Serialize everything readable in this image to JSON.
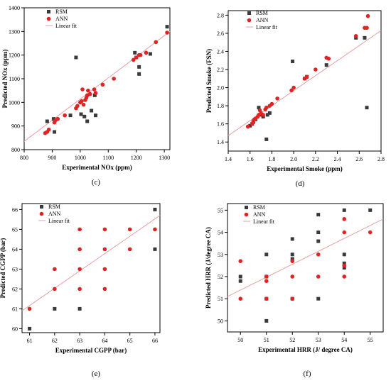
{
  "figure": {
    "panels": [
      "(c)",
      "(d)",
      "(e)",
      "(f)"
    ]
  },
  "colors": {
    "rsm": "#3a3a3a",
    "ann": "#e02424",
    "fit": "#e8a0a0",
    "axis": "#000000"
  },
  "chart_data": [
    {
      "type": "scatter",
      "panel_label": "(c)",
      "xlabel": "Experimental NOx (ppm)",
      "ylabel": "Predicted NOx (ppm)",
      "xlim": [
        800,
        1320
      ],
      "ylim": [
        800,
        1400
      ],
      "xticks": [
        800,
        900,
        1000,
        1100,
        1200,
        1300
      ],
      "yticks": [
        800,
        900,
        1000,
        1100,
        1200,
        1300,
        1400
      ],
      "legend": [
        "RSM",
        "ANN",
        "Linear fit"
      ],
      "legend_position": "top-left",
      "fit_line": [
        [
          800,
          835
        ],
        [
          1320,
          1300
        ]
      ],
      "series": [
        {
          "name": "RSM",
          "marker": "square",
          "points": [
            [
              882,
              920
            ],
            [
              905,
              930
            ],
            [
              908,
              875
            ],
            [
              965,
              945
            ],
            [
              985,
              1190
            ],
            [
              1003,
              950
            ],
            [
              1015,
              940
            ],
            [
              1025,
              920
            ],
            [
              1040,
              965
            ],
            [
              1052,
              1030
            ],
            [
              1055,
              945
            ],
            [
              1195,
              1210
            ],
            [
              1200,
              1190
            ],
            [
              1210,
              1150
            ],
            [
              1210,
              1120
            ],
            [
              1250,
              1205
            ],
            [
              1310,
              1320
            ]
          ]
        },
        {
          "name": "ANN",
          "marker": "circle",
          "points": [
            [
              875,
              870
            ],
            [
              882,
              875
            ],
            [
              888,
              885
            ],
            [
              908,
              915
            ],
            [
              912,
              925
            ],
            [
              920,
              930
            ],
            [
              945,
              945
            ],
            [
              985,
              975
            ],
            [
              990,
              985
            ],
            [
              1000,
              1000
            ],
            [
              1005,
              1005
            ],
            [
              1008,
              1055
            ],
            [
              1012,
              990
            ],
            [
              1018,
              1010
            ],
            [
              1022,
              1020
            ],
            [
              1025,
              1030
            ],
            [
              1028,
              1050
            ],
            [
              1035,
              1035
            ],
            [
              1050,
              1055
            ],
            [
              1055,
              1040
            ],
            [
              1080,
              1075
            ],
            [
              1120,
              1100
            ],
            [
              1190,
              1180
            ],
            [
              1200,
              1190
            ],
            [
              1210,
              1200
            ],
            [
              1215,
              1200
            ],
            [
              1235,
              1210
            ],
            [
              1270,
              1255
            ],
            [
              1310,
              1295
            ]
          ]
        }
      ]
    },
    {
      "type": "scatter",
      "panel_label": "(d)",
      "xlabel": "Experimental Smoke (ppm)",
      "ylabel": "Predicted Smoke (FSN)",
      "xlim": [
        1.4,
        2.8
      ],
      "ylim": [
        1.3,
        2.85
      ],
      "xticks": [
        1.4,
        1.6,
        1.8,
        2.0,
        2.2,
        2.4,
        2.6,
        2.8
      ],
      "yticks": [
        1.4,
        1.6,
        1.8,
        2.0,
        2.2,
        2.4,
        2.6,
        2.8
      ],
      "legend": [
        "RSM",
        "ANN",
        "Linear fit"
      ],
      "legend_position": "top-left",
      "fit_line": [
        [
          1.4,
          1.47
        ],
        [
          2.8,
          2.63
        ]
      ],
      "series": [
        {
          "name": "RSM",
          "marker": "square",
          "points": [
            [
              1.6,
              1.58
            ],
            [
              1.62,
              1.6
            ],
            [
              1.63,
              1.62
            ],
            [
              1.65,
              1.65
            ],
            [
              1.68,
              1.78
            ],
            [
              1.7,
              1.7
            ],
            [
              1.72,
              1.68
            ],
            [
              1.75,
              1.43
            ],
            [
              1.76,
              1.7
            ],
            [
              1.78,
              1.72
            ],
            [
              1.99,
              2.29
            ],
            [
              2.1,
              2.1
            ],
            [
              2.12,
              2.12
            ],
            [
              2.3,
              2.25
            ],
            [
              2.57,
              2.55
            ],
            [
              2.65,
              2.55
            ],
            [
              2.67,
              1.78
            ]
          ]
        },
        {
          "name": "ANN",
          "marker": "circle",
          "points": [
            [
              1.58,
              1.57
            ],
            [
              1.62,
              1.6
            ],
            [
              1.63,
              1.63
            ],
            [
              1.64,
              1.65
            ],
            [
              1.65,
              1.66
            ],
            [
              1.67,
              1.68
            ],
            [
              1.68,
              1.7
            ],
            [
              1.69,
              1.75
            ],
            [
              1.7,
              1.72
            ],
            [
              1.72,
              1.7
            ],
            [
              1.74,
              1.76
            ],
            [
              1.75,
              1.78
            ],
            [
              1.78,
              1.8
            ],
            [
              1.8,
              1.82
            ],
            [
              1.85,
              1.88
            ],
            [
              1.98,
              1.97
            ],
            [
              2.0,
              2.0
            ],
            [
              2.1,
              2.1
            ],
            [
              2.12,
              2.12
            ],
            [
              2.2,
              2.2
            ],
            [
              2.3,
              2.33
            ],
            [
              2.32,
              2.32
            ],
            [
              2.57,
              2.57
            ],
            [
              2.65,
              2.66
            ],
            [
              2.67,
              2.66
            ],
            [
              2.68,
              2.79
            ]
          ]
        }
      ]
    },
    {
      "type": "scatter",
      "panel_label": "(e)",
      "xlabel": "Experimental CGPP (bar)",
      "ylabel": "Predicted CGPP (bar)",
      "xlim": [
        60.7,
        66.2
      ],
      "ylim": [
        59.8,
        66.3
      ],
      "xticks": [
        61,
        62,
        63,
        64,
        65,
        66
      ],
      "yticks": [
        60,
        61,
        62,
        63,
        64,
        65,
        66
      ],
      "legend": [
        "RSM",
        "ANN",
        "Linear fit"
      ],
      "legend_position": "top-left",
      "fit_line": [
        [
          60.7,
          60.9
        ],
        [
          66.2,
          65.7
        ]
      ],
      "series": [
        {
          "name": "RSM",
          "marker": "square",
          "points": [
            [
              61,
              60
            ],
            [
              62,
              61
            ],
            [
              63,
              61
            ],
            [
              66,
              64
            ],
            [
              66,
              66
            ]
          ]
        },
        {
          "name": "ANN",
          "marker": "circle",
          "points": [
            [
              61,
              61
            ],
            [
              62,
              62
            ],
            [
              62,
              63
            ],
            [
              63,
              62
            ],
            [
              63,
              63
            ],
            [
              63,
              64
            ],
            [
              63,
              65
            ],
            [
              64,
              62
            ],
            [
              64,
              63
            ],
            [
              64,
              64
            ],
            [
              64,
              65
            ],
            [
              65,
              64
            ],
            [
              65,
              65
            ],
            [
              66,
              65
            ]
          ]
        }
      ]
    },
    {
      "type": "scatter",
      "panel_label": "(f)",
      "xlabel": "Experimental HRR (J/ degree CA)",
      "ylabel": "Predicted HRR (J/degree CA)",
      "xlim": [
        49.5,
        55.5
      ],
      "ylim": [
        49.5,
        55.3
      ],
      "xticks": [
        50,
        51,
        52,
        53,
        54,
        55
      ],
      "yticks": [
        50,
        51,
        52,
        53,
        54,
        55
      ],
      "legend": [
        "RSM",
        "ANN",
        "Linear fit"
      ],
      "legend_position": "top-left",
      "fit_line": [
        [
          49.5,
          51.1
        ],
        [
          55.5,
          54.6
        ]
      ],
      "series": [
        {
          "name": "RSM",
          "marker": "square",
          "points": [
            [
              50,
              51.8
            ],
            [
              50,
              52
            ],
            [
              51,
              50
            ],
            [
              51,
              51
            ],
            [
              51,
              52
            ],
            [
              51,
              53
            ],
            [
              52,
              51
            ],
            [
              52,
              52.8
            ],
            [
              52,
              53
            ],
            [
              52,
              53.7
            ],
            [
              53,
              51
            ],
            [
              53,
              53.6
            ],
            [
              53,
              54
            ],
            [
              53,
              54.8
            ],
            [
              54,
              52.4
            ],
            [
              54,
              52.6
            ],
            [
              54,
              53
            ],
            [
              54,
              55
            ],
            [
              55,
              55
            ]
          ]
        },
        {
          "name": "ANN",
          "marker": "circle",
          "points": [
            [
              50,
              51
            ],
            [
              50,
              52.7
            ],
            [
              51,
              51
            ],
            [
              51,
              51.8
            ],
            [
              51,
              52
            ],
            [
              52,
              51
            ],
            [
              52,
              52
            ],
            [
              52,
              52.7
            ],
            [
              53,
              52
            ],
            [
              53,
              53
            ],
            [
              54,
              52
            ],
            [
              54,
              52.5
            ],
            [
              54,
              54
            ],
            [
              54,
              54.6
            ],
            [
              55,
              54
            ]
          ]
        }
      ]
    }
  ]
}
